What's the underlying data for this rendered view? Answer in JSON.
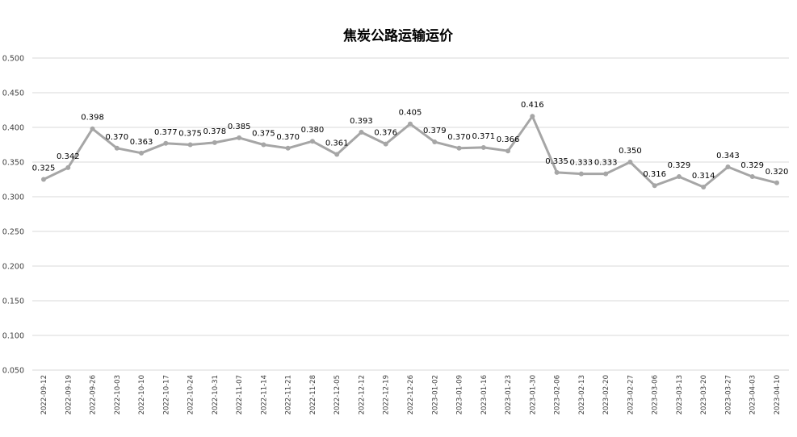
{
  "chart_data": {
    "type": "line",
    "title": "焦炭公路运输运价",
    "xlabel": "",
    "ylabel": "",
    "ylim": [
      0.05,
      0.5
    ],
    "yticks": [
      "0.050",
      "0.100",
      "0.150",
      "0.200",
      "0.250",
      "0.300",
      "0.350",
      "0.400",
      "0.450",
      "0.500"
    ],
    "grid": true,
    "line_color": "#a6a6a6",
    "categories": [
      "2022-09-12",
      "2022-09-19",
      "2022-09-26",
      "2022-10-03",
      "2022-10-10",
      "2022-10-17",
      "2022-10-24",
      "2022-10-31",
      "2022-11-07",
      "2022-11-14",
      "2022-11-21",
      "2022-11-28",
      "2022-12-05",
      "2022-12-12",
      "2022-12-19",
      "2022-12-26",
      "2023-01-02",
      "2023-01-09",
      "2023-01-16",
      "2023-01-23",
      "2023-01-30",
      "2023-02-06",
      "2023-02-13",
      "2023-02-20",
      "2023-02-27",
      "2023-03-06",
      "2023-03-13",
      "2023-03-20",
      "2023-03-27",
      "2023-04-03",
      "2023-04-10"
    ],
    "values": [
      0.325,
      0.342,
      0.398,
      0.37,
      0.363,
      0.377,
      0.375,
      0.378,
      0.385,
      0.375,
      0.37,
      0.38,
      0.361,
      0.393,
      0.376,
      0.405,
      0.379,
      0.37,
      0.371,
      0.366,
      0.416,
      0.335,
      0.333,
      0.333,
      0.35,
      0.316,
      0.329,
      0.314,
      0.343,
      0.329,
      0.32
    ],
    "labels": [
      "0.325",
      "0.342",
      "0.398",
      "0.370",
      "0.363",
      "0.377",
      "0.375",
      "0.378",
      "0.385",
      "0.375",
      "0.370",
      "0.380",
      "0.361",
      "0.393",
      "0.376",
      "0.405",
      "0.379",
      "0.370",
      "0.371",
      "0.366",
      "0.416",
      "0.335",
      "0.333",
      "0.333",
      "0.350",
      "0.316",
      "0.329",
      "0.314",
      "0.343",
      "0.329",
      "0.320"
    ]
  }
}
